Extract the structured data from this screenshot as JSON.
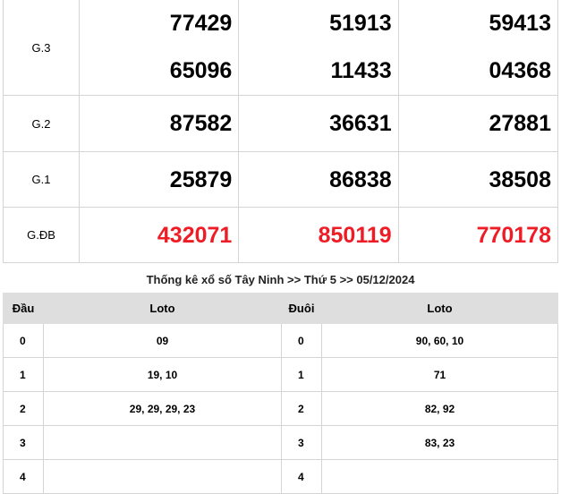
{
  "results": [
    {
      "label": "G.3",
      "cols": [
        [
          "77429",
          "65096"
        ],
        [
          "51913",
          "11433"
        ],
        [
          "59413",
          "04368"
        ]
      ]
    },
    {
      "label": "G.2",
      "cols": [
        [
          "87582"
        ],
        [
          "36631"
        ],
        [
          "27881"
        ]
      ]
    },
    {
      "label": "G.1",
      "cols": [
        [
          "25879"
        ],
        [
          "86838"
        ],
        [
          "38508"
        ]
      ]
    },
    {
      "label": "G.ĐB",
      "cols": [
        [
          "432071"
        ],
        [
          "850119"
        ],
        [
          "770178"
        ]
      ],
      "special": true
    }
  ],
  "special_color": "#ee1c25",
  "stats": {
    "title": "Thống kê xổ số Tây Ninh >> Thứ 5 >> 05/12/2024",
    "headers": [
      "Đầu",
      "Loto",
      "Đuôi",
      "Loto"
    ],
    "rows": [
      [
        "0",
        "09",
        "0",
        "90, 60, 10"
      ],
      [
        "1",
        "19, 10",
        "1",
        "71"
      ],
      [
        "2",
        "29, 29, 29, 23",
        "2",
        "82, 92"
      ],
      [
        "3",
        "",
        "3",
        "83, 23"
      ],
      [
        "4",
        "",
        "4",
        ""
      ]
    ]
  }
}
